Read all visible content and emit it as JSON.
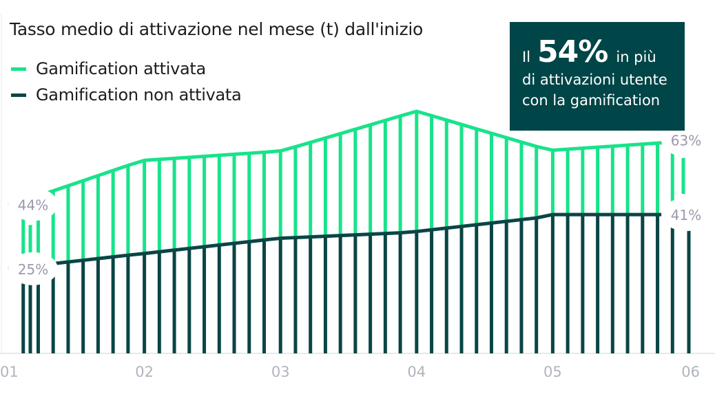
{
  "title": "Tasso medio di attivazione nel mese (t) dall'inizio",
  "legend": [
    {
      "label": "Gamification attivata",
      "color": "#18e38a"
    },
    {
      "label": "Gamification non attivata",
      "color": "#0a4545"
    }
  ],
  "callout": {
    "pre": "Il",
    "big": "54%",
    "post": "in più",
    "line2": "di attivazioni utente",
    "line3": "con la gamification",
    "bg_color": "#004547"
  },
  "chart_data": {
    "type": "bar",
    "x_tick_labels": [
      "01",
      "02",
      "03",
      "04",
      "05",
      "06"
    ],
    "x": [
      1.0,
      1.11,
      1.22,
      1.33,
      1.44,
      1.55,
      1.66,
      1.77,
      1.88,
      2.0,
      2.11,
      2.22,
      2.33,
      2.44,
      2.55,
      2.66,
      2.77,
      2.88,
      3.0,
      3.11,
      3.22,
      3.33,
      3.44,
      3.55,
      3.66,
      3.77,
      3.88,
      4.0,
      4.11,
      4.22,
      4.33,
      4.44,
      4.55,
      4.66,
      4.77,
      4.88,
      5.0,
      5.11,
      5.22,
      5.33,
      5.44,
      5.55,
      5.66,
      5.77,
      5.88,
      6.0
    ],
    "series": [
      {
        "name": "Gamification attivata",
        "color": "#18e38a",
        "values": [
          44,
          45,
          46.5,
          48,
          49.5,
          51,
          52.5,
          54,
          55.5,
          57,
          57.3,
          57.6,
          57.9,
          58.2,
          58.5,
          58.8,
          59.1,
          59.4,
          59.8,
          61,
          62.3,
          63.6,
          64.9,
          66.2,
          67.5,
          68.8,
          70.1,
          71.5,
          70.2,
          68.9,
          67.6,
          66.3,
          65,
          63.7,
          62.4,
          61.1,
          60,
          60.3,
          60.6,
          60.9,
          61.2,
          61.5,
          61.8,
          62.1,
          62.4,
          63
        ]
      },
      {
        "name": "Gamification non attivata",
        "color": "#0a4545",
        "values": [
          25,
          25.5,
          26,
          26.5,
          27,
          27.5,
          28,
          28.5,
          29,
          29.5,
          30,
          30.5,
          31,
          31.5,
          32,
          32.5,
          33,
          33.5,
          34,
          34.2,
          34.4,
          34.6,
          34.8,
          35,
          35.2,
          35.4,
          35.6,
          36,
          36.5,
          37,
          37.5,
          38,
          38.5,
          39,
          39.5,
          40,
          41,
          41,
          41,
          41,
          41,
          41,
          41,
          41,
          41,
          41
        ]
      }
    ],
    "point_labels": [
      {
        "series": 0,
        "index": 0,
        "text": "44%"
      },
      {
        "series": 1,
        "index": 0,
        "text": "25%"
      },
      {
        "series": 0,
        "index": 45,
        "text": "63%"
      },
      {
        "series": 1,
        "index": 45,
        "text": "41%"
      }
    ],
    "ylim": [
      0,
      80
    ],
    "grid": false
  }
}
